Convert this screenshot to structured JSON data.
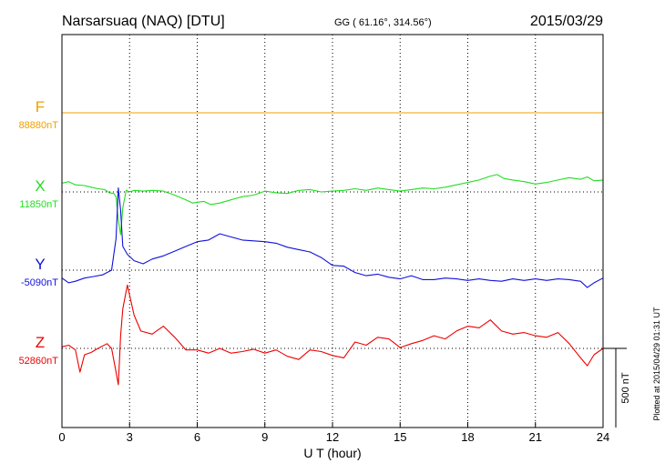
{
  "chart_data": {
    "type": "line",
    "title": "Narsarsuaq (NAQ)  [DTU]",
    "coords": "GG ( 61.16°, 314.56°)",
    "date": "2015/03/29",
    "xlabel": "U T (hour)",
    "xlim": [
      0,
      24
    ],
    "xticks": [
      "0",
      "3",
      "6",
      "9",
      "12",
      "15",
      "18",
      "21",
      "24"
    ],
    "grid": true,
    "scale_bar_label": "500 nT",
    "scale_bar_nT": 500,
    "plotted_note": "Plotted at 2015/04/29 01:31  UT",
    "series": [
      {
        "name": "F",
        "baseline_label": "88880nT",
        "color": "#f0a000",
        "x": [
          0,
          24
        ],
        "y": [
          0,
          0
        ]
      },
      {
        "name": "X",
        "baseline_label": "11850nT",
        "color": "#22dd22",
        "x": [
          0,
          0.3,
          0.6,
          1,
          1.3,
          1.6,
          1.9,
          2.1,
          2.3,
          2.4,
          2.5,
          2.6,
          2.7,
          2.85,
          3,
          3.2,
          3.6,
          4,
          4.5,
          5,
          5.5,
          5.8,
          6,
          6.3,
          6.6,
          7,
          7.5,
          8,
          8.5,
          9,
          9.5,
          10,
          10.5,
          11,
          11.5,
          12,
          12.5,
          13,
          13.5,
          14,
          14.5,
          15,
          15.5,
          16,
          16.5,
          17,
          17.5,
          18,
          18.5,
          19,
          19.3,
          19.6,
          20,
          20.5,
          21,
          21.5,
          22,
          22.5,
          23,
          23.3,
          23.6,
          24
        ],
        "y": [
          55,
          65,
          45,
          40,
          30,
          20,
          15,
          -5,
          -10,
          -30,
          -180,
          -270,
          -100,
          10,
          0,
          10,
          5,
          10,
          5,
          -20,
          -50,
          -70,
          -65,
          -60,
          -80,
          -70,
          -50,
          -30,
          -20,
          5,
          -5,
          -10,
          10,
          15,
          0,
          5,
          10,
          20,
          10,
          25,
          15,
          5,
          15,
          25,
          20,
          30,
          45,
          60,
          75,
          100,
          110,
          85,
          75,
          65,
          50,
          60,
          75,
          90,
          80,
          95,
          70,
          75
        ]
      },
      {
        "name": "Y",
        "baseline_label": "-5090nT",
        "color": "#1010dd",
        "x": [
          0,
          0.3,
          0.6,
          1,
          1.4,
          1.8,
          2.2,
          2.4,
          2.5,
          2.6,
          2.7,
          2.9,
          3.2,
          3.6,
          4,
          4.5,
          5,
          5.5,
          6,
          6.5,
          7,
          7.5,
          8,
          8.5,
          9,
          9.5,
          10,
          10.5,
          11,
          11.5,
          12,
          12.5,
          13,
          13.5,
          14,
          14.5,
          15,
          15.5,
          16,
          16.5,
          17,
          17.5,
          18,
          18.5,
          19,
          19.5,
          20,
          20.5,
          21,
          21.5,
          22,
          22.5,
          23,
          23.3,
          23.6,
          24
        ],
        "y": [
          -50,
          -80,
          -70,
          -50,
          -40,
          -30,
          0,
          200,
          520,
          380,
          150,
          100,
          60,
          40,
          70,
          90,
          120,
          150,
          180,
          190,
          230,
          210,
          190,
          185,
          180,
          170,
          145,
          130,
          115,
          80,
          30,
          25,
          -15,
          -35,
          -25,
          -45,
          -55,
          -35,
          -60,
          -60,
          -50,
          -55,
          -65,
          -55,
          -65,
          -70,
          -55,
          -65,
          -55,
          -65,
          -55,
          -60,
          -70,
          -110,
          -80,
          -50
        ]
      },
      {
        "name": "Z",
        "baseline_label": "52860nT",
        "color": "#ee0000",
        "x": [
          0,
          0.3,
          0.6,
          0.8,
          1,
          1.3,
          1.6,
          2,
          2.2,
          2.4,
          2.5,
          2.6,
          2.7,
          2.9,
          3.2,
          3.5,
          4,
          4.5,
          5,
          5.5,
          6,
          6.5,
          7,
          7.5,
          8,
          8.5,
          9,
          9.5,
          10,
          10.5,
          11,
          11.5,
          12,
          12.5,
          13,
          13.5,
          14,
          14.5,
          15,
          15.5,
          16,
          16.5,
          17,
          17.5,
          18,
          18.5,
          19,
          19.5,
          20,
          20.5,
          21,
          21.5,
          22,
          22.5,
          23,
          23.3,
          23.6,
          24
        ],
        "y": [
          10,
          20,
          -10,
          -150,
          -40,
          -25,
          0,
          30,
          0,
          -150,
          -230,
          80,
          250,
          400,
          210,
          110,
          90,
          140,
          70,
          -10,
          -10,
          -30,
          0,
          -30,
          -20,
          -5,
          -30,
          -10,
          -50,
          -70,
          -10,
          -20,
          -45,
          -60,
          40,
          20,
          70,
          60,
          5,
          30,
          50,
          80,
          60,
          110,
          140,
          130,
          180,
          110,
          90,
          100,
          80,
          70,
          100,
          30,
          -60,
          -110,
          -40,
          0
        ]
      }
    ]
  }
}
